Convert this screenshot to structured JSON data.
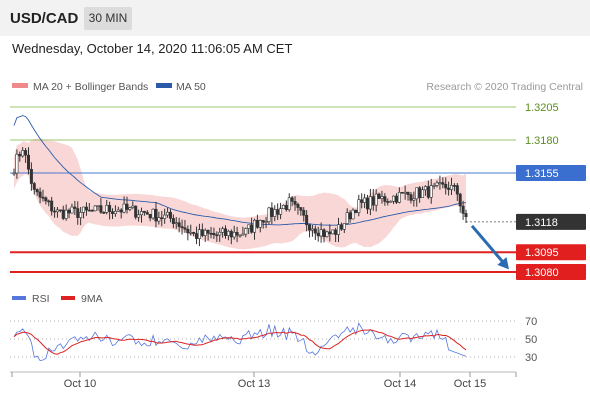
{
  "header": {
    "symbol": "USD/CAD",
    "timeframe": "30 MIN",
    "datetime": "Wednesday, October 14, 2020 11:06:05 AM CET"
  },
  "legend": {
    "bollinger_label": "MA 20 + Bollinger Bands",
    "ma50_label": "MA 50",
    "copyright": "Research © 2020 Trading Central"
  },
  "rsi_legend": {
    "rsi_label": "RSI",
    "ma_label": "9MA"
  },
  "colors": {
    "candle": "#333333",
    "bollinger": "#f4a7a7",
    "ma50": "#2b5ba8",
    "resistance": "#7cb342",
    "pivot": "#4a78d0",
    "support": "#e02020",
    "rsi": "#5577dd",
    "rsi_ma": "#dd2222",
    "arrow": "#2b6cb0"
  },
  "chart_data": {
    "type": "candlestick",
    "x_tick_labels": [
      "Oct 10",
      "Oct 13",
      "Oct 14",
      "Oct 15"
    ],
    "ylim": [
      1.3072,
      1.3214
    ],
    "price_levels": [
      {
        "label": "1.3205",
        "value": 1.3205,
        "kind": "resistance"
      },
      {
        "label": "1.3180",
        "value": 1.318,
        "kind": "resistance"
      },
      {
        "label": "1.3155",
        "value": 1.3155,
        "kind": "pivot"
      },
      {
        "label": "1.3118",
        "value": 1.3118,
        "kind": "last"
      },
      {
        "label": "1.3095",
        "value": 1.3095,
        "kind": "support"
      },
      {
        "label": "1.3080",
        "value": 1.308,
        "kind": "support"
      }
    ],
    "rsi_ticks": [
      "70",
      "50",
      "30"
    ],
    "rsi_levels": [
      70,
      50,
      30
    ],
    "last_price": 1.3118,
    "projection_target": 1.3082
  }
}
